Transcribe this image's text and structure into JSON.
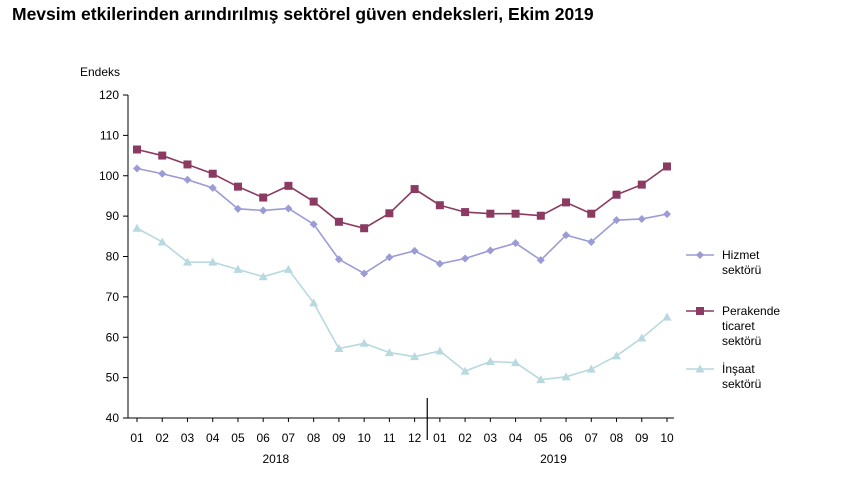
{
  "title": "Mevsim etkilerinden arındırılmış sektörel güven endeksleri, Ekim 2019",
  "chart_data": {
    "type": "line",
    "title": "Mevsim etkilerinden arındırılmış sektörel güven endeksleri, Ekim 2019",
    "ylabel": "Endeks",
    "ylim": [
      40,
      120
    ],
    "yticks": [
      40,
      50,
      60,
      70,
      80,
      90,
      100,
      110,
      120
    ],
    "categories": [
      "01",
      "02",
      "03",
      "04",
      "05",
      "06",
      "07",
      "08",
      "09",
      "10",
      "11",
      "12",
      "01",
      "02",
      "03",
      "04",
      "05",
      "06",
      "07",
      "08",
      "09",
      "10"
    ],
    "year_labels": [
      "2018",
      "2019"
    ],
    "grid": false,
    "legend_position": "right",
    "series": [
      {
        "name": "Hizmet sektörü",
        "legend_lines": [
          "Hizmet",
          "sektörü"
        ],
        "color": "#9b9bd6",
        "marker": "diamond",
        "values": [
          101.8,
          100.5,
          99.0,
          97.0,
          91.8,
          91.4,
          91.9,
          88.0,
          79.3,
          75.8,
          79.8,
          81.4,
          78.2,
          79.5,
          81.5,
          83.3,
          79.1,
          85.3,
          83.6,
          89.0,
          89.3,
          90.5
        ]
      },
      {
        "name": "Perakende ticaret sektörü",
        "legend_lines": [
          "Perakende",
          "ticaret",
          "sektörü"
        ],
        "color": "#8b3a62",
        "marker": "square",
        "values": [
          106.5,
          105.0,
          102.8,
          100.5,
          97.3,
          94.6,
          97.5,
          93.6,
          88.6,
          87.0,
          90.7,
          96.7,
          92.7,
          91.0,
          90.6,
          90.6,
          90.1,
          93.4,
          90.6,
          95.3,
          97.8,
          102.3
        ]
      },
      {
        "name": "İnşaat sektörü",
        "legend_lines": [
          "İnşaat",
          "sektörü"
        ],
        "color": "#b8d9df",
        "marker": "triangle",
        "values": [
          87.0,
          83.6,
          78.6,
          78.6,
          76.8,
          75.0,
          76.8,
          68.5,
          57.2,
          58.5,
          56.2,
          55.2,
          56.6,
          51.6,
          54.0,
          53.7,
          49.5,
          50.2,
          52.1,
          55.4,
          59.8,
          65.0
        ]
      }
    ]
  }
}
